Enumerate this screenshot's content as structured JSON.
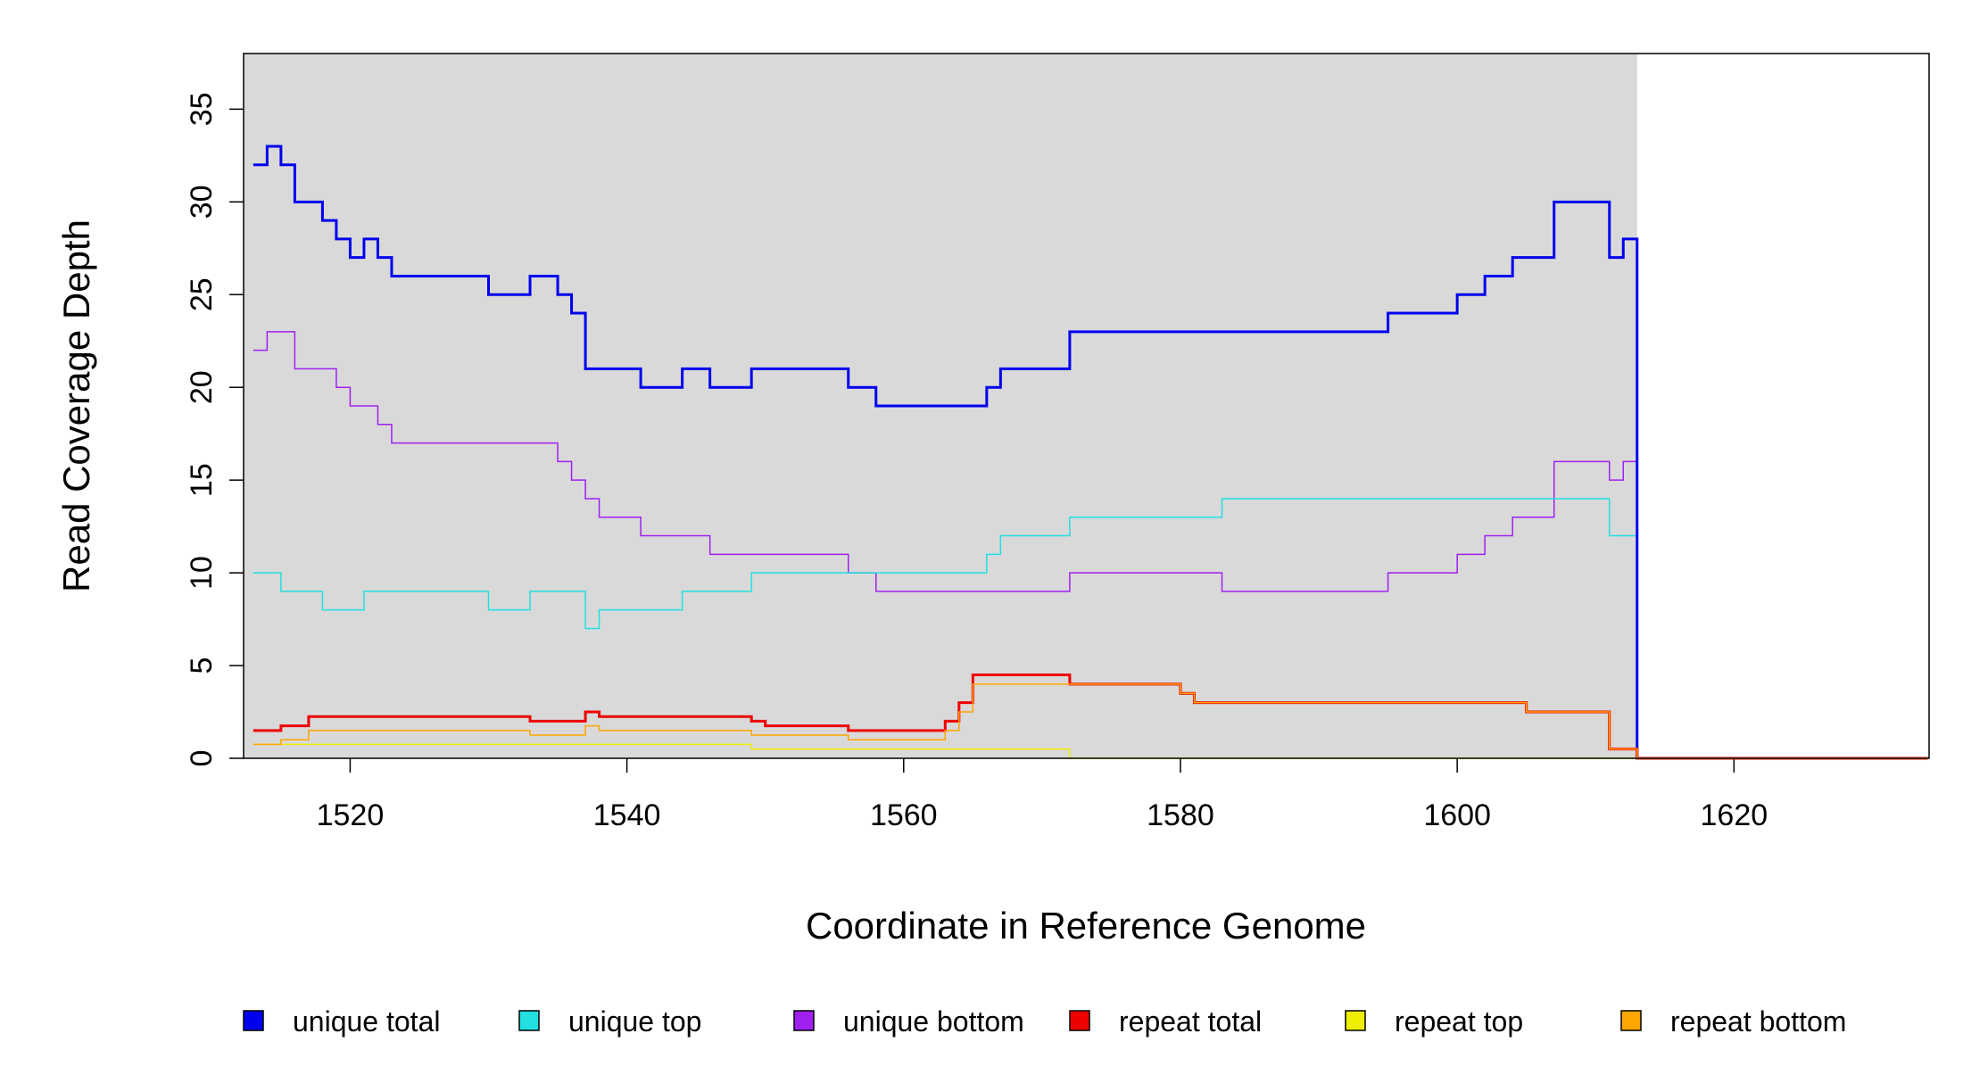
{
  "chart_data": {
    "type": "step",
    "x_label": "Coordinate in Reference Genome",
    "y_label": "Read Coverage Depth",
    "xlim": [
      1512.3,
      1634.1
    ],
    "ylim": [
      0,
      38
    ],
    "xticks": [
      1520,
      1540,
      1560,
      1580,
      1600,
      1620
    ],
    "yticks": [
      0,
      5,
      10,
      15,
      20,
      25,
      30,
      35
    ],
    "shaded_xlim": [
      1512.3,
      1613
    ],
    "shade_color": "#d9d9d9",
    "series": [
      {
        "name": "unique total",
        "color": "#0000ee",
        "width": 3,
        "x": [
          1513,
          1514,
          1515,
          1516,
          1518,
          1519,
          1520,
          1521,
          1522,
          1523,
          1530,
          1533,
          1535,
          1536,
          1537,
          1541,
          1544,
          1546,
          1549,
          1556,
          1558,
          1566,
          1567,
          1572,
          1595,
          1600,
          1602,
          1604,
          1607,
          1611,
          1612,
          1613,
          1634
        ],
        "values": [
          32,
          33,
          32,
          30,
          29,
          28,
          27,
          28,
          27,
          26,
          25,
          26,
          25,
          24,
          21,
          20,
          21,
          20,
          21,
          20,
          19,
          20,
          21,
          23,
          24,
          25,
          26,
          27,
          30,
          27,
          28,
          0,
          0
        ]
      },
      {
        "name": "unique top",
        "color": "#22e0e0",
        "width": 1.5,
        "x": [
          1513,
          1515,
          1518,
          1521,
          1530,
          1533,
          1537,
          1538,
          1544,
          1549,
          1566,
          1567,
          1572,
          1583,
          1611,
          1613,
          1634
        ],
        "values": [
          10,
          9,
          8,
          9,
          8,
          9,
          7,
          8,
          9,
          10,
          11,
          12,
          13,
          14,
          12,
          0,
          0
        ]
      },
      {
        "name": "unique bottom",
        "color": "#a020f0",
        "width": 1.5,
        "x": [
          1513,
          1514,
          1516,
          1519,
          1520,
          1522,
          1523,
          1535,
          1536,
          1537,
          1538,
          1541,
          1546,
          1556,
          1558,
          1572,
          1583,
          1595,
          1600,
          1602,
          1604,
          1607,
          1611,
          1612,
          1613,
          1634
        ],
        "values": [
          22,
          23,
          21,
          20,
          19,
          18,
          17,
          16,
          15,
          14,
          13,
          12,
          11,
          10,
          9,
          10,
          9,
          10,
          11,
          12,
          13,
          16,
          15,
          16,
          0,
          0
        ]
      },
      {
        "name": "repeat total",
        "color": "#ee0000",
        "width": 3,
        "x": [
          1513,
          1515,
          1517,
          1533,
          1537,
          1538,
          1549,
          1550,
          1556,
          1563,
          1564,
          1565,
          1572,
          1580,
          1581,
          1605,
          1611,
          1613,
          1634
        ],
        "values": [
          1.5,
          1.75,
          2.25,
          2,
          2.5,
          2.25,
          2,
          1.75,
          1.5,
          2,
          3,
          4.5,
          4,
          3.5,
          3,
          2.5,
          0.5,
          0,
          0
        ]
      },
      {
        "name": "repeat top",
        "color": "#eeee00",
        "width": 1.5,
        "x": [
          1513,
          1549,
          1572,
          1634
        ],
        "values": [
          0.75,
          0.5,
          0,
          0
        ]
      },
      {
        "name": "repeat bottom",
        "color": "#ffa500",
        "width": 1.5,
        "x": [
          1513,
          1515,
          1517,
          1533,
          1537,
          1538,
          1549,
          1556,
          1563,
          1564,
          1565,
          1572,
          1580,
          1581,
          1605,
          1611,
          1613,
          1634
        ],
        "values": [
          0.75,
          1,
          1.5,
          1.25,
          1.75,
          1.5,
          1.25,
          1,
          1.5,
          2.5,
          4,
          4,
          3.5,
          3,
          2.5,
          0.5,
          0,
          0
        ]
      }
    ]
  }
}
